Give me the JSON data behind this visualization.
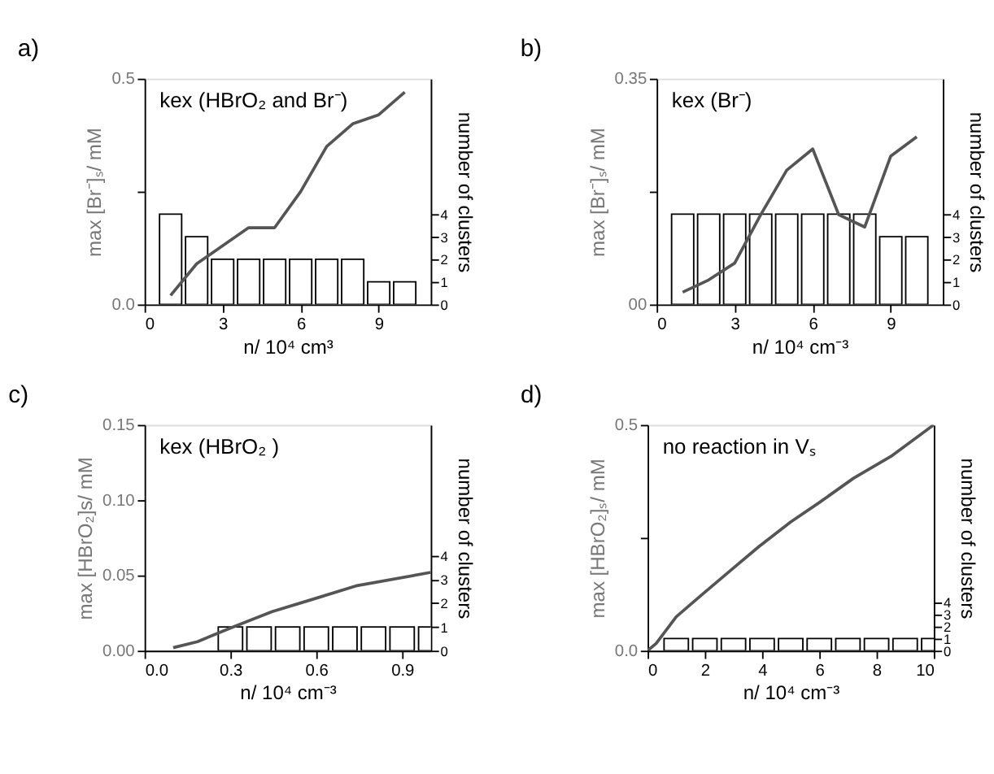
{
  "chart_data": [
    {
      "type": "line",
      "title": "a)",
      "xlabel": "n/ 10⁴ cm³",
      "ylabel": "max [Br⁻]ₛ/ mM",
      "y2label": "number of clusters",
      "annotations": [
        "kex (HBrO₂ and Br⁻)"
      ],
      "xlim": [
        0,
        11
      ],
      "xticks": [
        0,
        3,
        6,
        9
      ],
      "ylim": [
        0,
        0.5
      ],
      "yticks": [
        {
          "value": 0,
          "label": "0.0"
        },
        {
          "value": 0.25,
          "label": null
        },
        {
          "value": 0.5,
          "label": "0.5"
        }
      ],
      "y2lim": [
        0,
        10
      ],
      "y2ticks": [
        0,
        1,
        2,
        3,
        4
      ],
      "grid": false,
      "series": [
        {
          "type": "bar",
          "axis": "y2",
          "color": "#000000",
          "x": [
            1,
            2,
            3,
            4,
            5,
            6,
            7,
            8,
            9,
            10
          ],
          "values": [
            4,
            3,
            2,
            2,
            2,
            2,
            2,
            2,
            1,
            1
          ]
        },
        {
          "color": "#555555",
          "x": [
            1,
            2,
            3,
            4,
            5,
            6,
            7,
            8,
            9,
            10
          ],
          "values": [
            0.02,
            0.09,
            0.13,
            0.17,
            0.17,
            0.25,
            0.35,
            0.4,
            0.42,
            0.47
          ]
        }
      ]
    },
    {
      "type": "line",
      "title": "b)",
      "xlabel": "n/ 10⁴ cm⁻³",
      "ylabel": "max [Br⁻]ₛ/ mM",
      "y2label": "number of clusters",
      "annotations": [
        "kex (Br⁻)"
      ],
      "xlim": [
        0,
        11
      ],
      "xticks": [
        0,
        3,
        6,
        9
      ],
      "ylim": [
        0,
        0.35
      ],
      "yticks": [
        {
          "value": 0,
          "label": "00"
        },
        {
          "value": 0.175,
          "label": null
        },
        {
          "value": 0.35,
          "label": "0.35"
        }
      ],
      "y2lim": [
        0,
        10
      ],
      "y2ticks": [
        0,
        1,
        2,
        3,
        4
      ],
      "grid": false,
      "series": [
        {
          "type": "bar",
          "axis": "y2",
          "color": "#000000",
          "x": [
            1,
            2,
            3,
            4,
            5,
            6,
            7,
            8,
            9,
            10
          ],
          "values": [
            4,
            4,
            4,
            4,
            4,
            4,
            4,
            4,
            3,
            3
          ]
        },
        {
          "color": "#555555",
          "x": [
            1,
            2,
            3,
            4,
            5,
            6,
            7,
            8,
            9,
            10
          ],
          "values": [
            0.019,
            0.038,
            0.064,
            0.139,
            0.208,
            0.241,
            0.139,
            0.12,
            0.23,
            0.26
          ]
        }
      ]
    },
    {
      "type": "line",
      "title": "c)",
      "xlabel": "n/ 10⁴ cm⁻³",
      "ylabel": "max [HBrO₂]s/ mM",
      "y2label": "number of clusters",
      "annotations": [
        "kex (HBrO₂ )"
      ],
      "xlim": [
        0,
        1.0
      ],
      "xticks": [
        {
          "value": 0,
          "label": "0.0"
        },
        0.3,
        0.6,
        0.9
      ],
      "ylim": [
        0,
        0.15
      ],
      "yticks": [
        {
          "value": 0,
          "label": "0.00"
        },
        0.05,
        {
          "value": 0.1,
          "label": "0.10"
        },
        0.15
      ],
      "y2lim": [
        0,
        9.5
      ],
      "y2ticks": [
        0,
        1,
        2,
        3,
        4
      ],
      "grid": false,
      "series": [
        {
          "type": "bar",
          "axis": "y2",
          "color": "#000000",
          "x": [
            0.3,
            0.4,
            0.5,
            0.6,
            0.7,
            0.8,
            0.9,
            1.0
          ],
          "values": [
            1,
            1,
            1,
            1,
            1,
            1,
            1,
            1
          ]
        },
        {
          "color": "#555555",
          "x": [
            0.1,
            0.185,
            0.3,
            0.446,
            0.585,
            0.738,
            1.0
          ],
          "values": [
            0.002,
            0.006,
            0.015,
            0.026,
            0.034,
            0.043,
            0.052
          ]
        }
      ]
    },
    {
      "type": "line",
      "title": "d)",
      "xlabel": "n/ 10⁴ cm⁻³",
      "ylabel": "max [HBrO₂]ₛ/ mM",
      "y2label": "number of clusters",
      "annotations": [
        "no reaction in Vₛ"
      ],
      "xlim": [
        0,
        10
      ],
      "xticks": [
        0,
        2,
        4,
        6,
        8,
        10
      ],
      "ylim": [
        0,
        0.5
      ],
      "yticks": [
        {
          "value": 0,
          "label": "0.0"
        },
        {
          "value": 0.25,
          "label": null
        },
        {
          "value": 0.5,
          "label": "0.5"
        }
      ],
      "y2lim": [
        0,
        18.6
      ],
      "y2ticks": [
        0,
        1,
        2,
        3,
        4
      ],
      "grid": false,
      "series": [
        {
          "type": "bar",
          "axis": "y2",
          "color": "#000000",
          "x": [
            1,
            2,
            3,
            4,
            5,
            6,
            7,
            8,
            9,
            10
          ],
          "values": [
            1,
            1,
            1,
            1,
            1,
            1,
            1,
            1,
            1,
            1
          ]
        },
        {
          "color": "#555555",
          "x": [
            0,
            0.3,
            1.0,
            1.9,
            3,
            3.9,
            5,
            6,
            7.2,
            8.5,
            10
          ],
          "values": [
            0,
            0.016,
            0.075,
            0.124,
            0.183,
            0.231,
            0.285,
            0.328,
            0.382,
            0.43,
            0.5
          ]
        }
      ]
    }
  ]
}
